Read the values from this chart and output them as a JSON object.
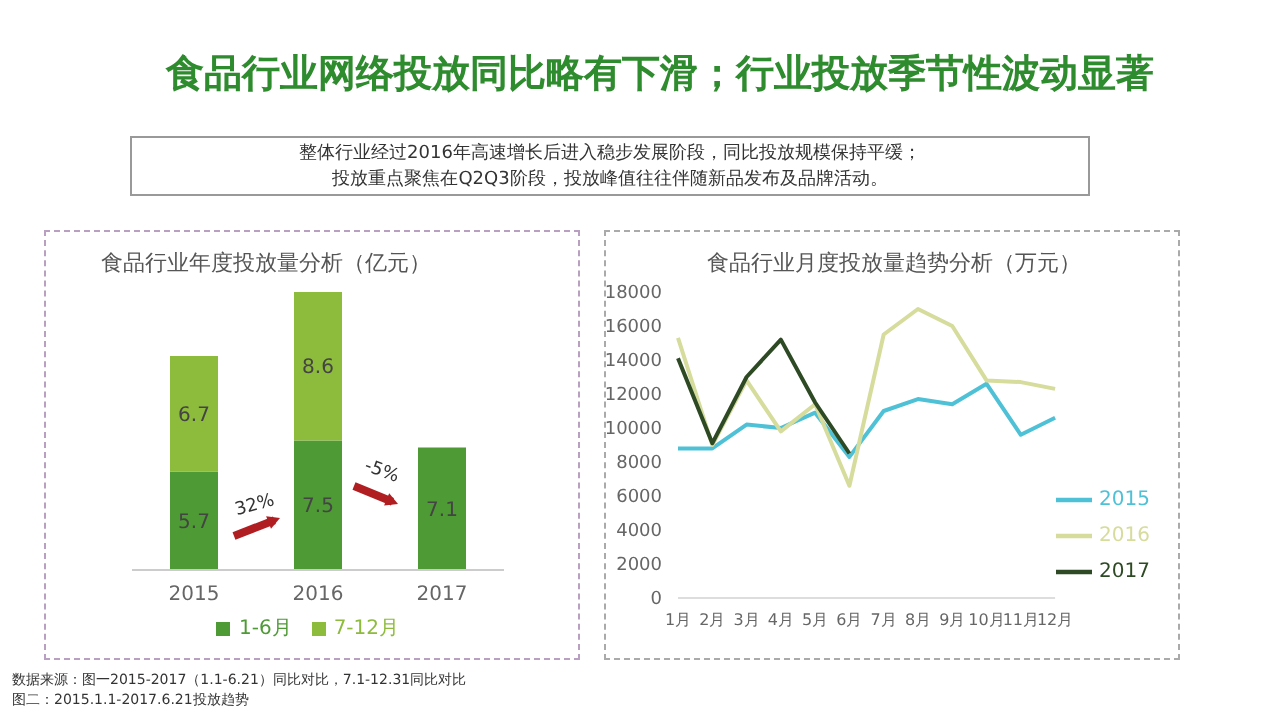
{
  "chart_data": [
    {
      "type": "bar",
      "title": "食品行业年度投放量分析（亿元）",
      "stacked": true,
      "data_labels": true,
      "legend": "bottom",
      "categories": [
        "2015",
        "2016",
        "2017"
      ],
      "series": [
        {
          "name": "1-6月",
          "color": "#4e9a35",
          "values": [
            5.7,
            7.5,
            7.1
          ]
        },
        {
          "name": "7-12月",
          "color": "#8dbb3c",
          "values": [
            6.7,
            8.6,
            null
          ]
        }
      ],
      "annotations": [
        "食品行业网络投放同比略有下滑；行业投放季节性波动显著",
        "整体行业经过2016年高速增长后进入稳步发展阶段，同比投放规模保持平缓；",
        "投放重点聚焦在Q2Q3阶段，投放峰值往往伴随新品发布及品牌活动。",
        "32%",
        "-5%",
        "数据来源：图一2015-2017（1.1-6.21）同比对比，7.1-12.31同比对比",
        "图二：2015.1.1-2017.6.21投放趋势"
      ]
    },
    {
      "type": "line",
      "title": "食品行业月度投放量趋势分析（万元）",
      "legend": "right",
      "marker": "none",
      "line_style": "solid",
      "categories": [
        "1月",
        "2月",
        "3月",
        "4月",
        "5月",
        "6月",
        "7月",
        "8月",
        "9月",
        "10月",
        "11月",
        "12月"
      ],
      "ylim": [
        0,
        18000
      ],
      "yticks": [
        0,
        2000,
        4000,
        6000,
        8000,
        10000,
        12000,
        14000,
        16000,
        18000
      ],
      "series": [
        {
          "name": "2015",
          "color": "#4fc1d6",
          "values": [
            8800,
            8800,
            10200,
            10000,
            10900,
            8300,
            11000,
            11700,
            11400,
            12600,
            9600,
            10600
          ]
        },
        {
          "name": "2016",
          "color": "#d6dc9c",
          "values": [
            15300,
            9000,
            12800,
            9800,
            11400,
            6600,
            15500,
            17000,
            16000,
            12800,
            12700,
            12300
          ]
        },
        {
          "name": "2017",
          "color": "#2e4a24",
          "values": [
            14100,
            9100,
            13000,
            15200,
            11500,
            8500,
            null,
            null,
            null,
            null,
            null,
            null
          ]
        }
      ]
    }
  ]
}
